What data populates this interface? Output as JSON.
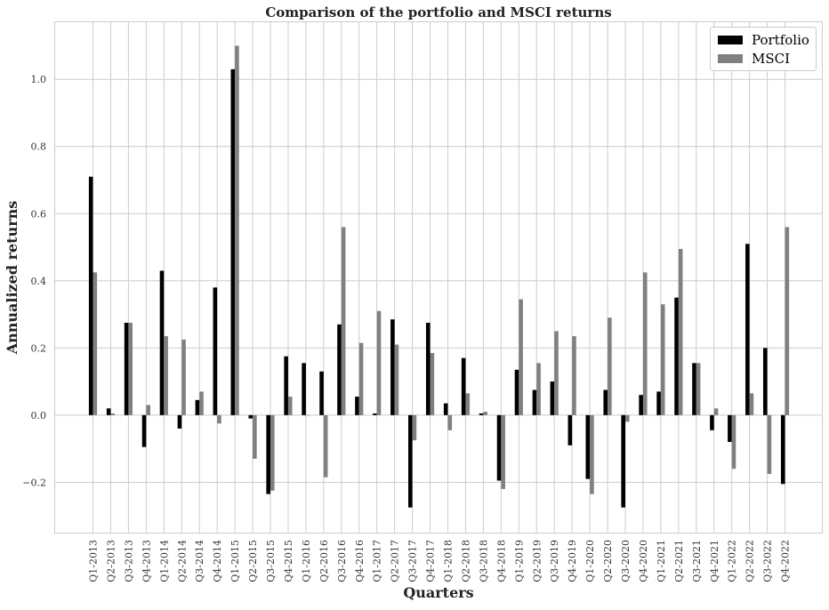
{
  "chart_data": {
    "type": "bar",
    "title": "Comparison of the portfolio and MSCI returns",
    "xlabel": "Quarters",
    "ylabel": "Annualized returns",
    "ylim": [
      -0.35,
      1.17
    ],
    "yticks": [
      -0.2,
      0.0,
      0.2,
      0.4,
      0.6,
      0.8,
      1.0
    ],
    "ytick_labels": [
      "−0.2",
      "0.0",
      "0.2",
      "0.4",
      "0.6",
      "0.8",
      "1.0"
    ],
    "grid": true,
    "legend_position": "top-right",
    "categories": [
      "Q1-2013",
      "Q2-2013",
      "Q3-2013",
      "Q4-2013",
      "Q1-2014",
      "Q2-2014",
      "Q3-2014",
      "Q4-2014",
      "Q1-2015",
      "Q2-2015",
      "Q3-2015",
      "Q4-2015",
      "Q1-2016",
      "Q2-2016",
      "Q3-2016",
      "Q4-2016",
      "Q1-2017",
      "Q2-2017",
      "Q3-2017",
      "Q4-2017",
      "Q1-2018",
      "Q2-2018",
      "Q3-2018",
      "Q4-2018",
      "Q1-2019",
      "Q2-2019",
      "Q3-2019",
      "Q4-2019",
      "Q1-2020",
      "Q2-2020",
      "Q3-2020",
      "Q4-2020",
      "Q1-2021",
      "Q2-2021",
      "Q3-2021",
      "Q4-2021",
      "Q1-2022",
      "Q2-2022",
      "Q3-2022",
      "Q4-2022"
    ],
    "series": [
      {
        "name": "Portfolio",
        "color": "#000000",
        "values": [
          0.71,
          0.02,
          0.275,
          -0.095,
          0.43,
          -0.04,
          0.045,
          0.38,
          1.03,
          -0.01,
          -0.235,
          0.175,
          0.155,
          0.13,
          0.27,
          0.055,
          0.005,
          0.285,
          -0.275,
          0.275,
          0.035,
          0.17,
          0.005,
          -0.195,
          0.135,
          0.075,
          0.1,
          -0.09,
          -0.19,
          0.075,
          -0.275,
          0.06,
          0.07,
          0.35,
          0.155,
          -0.045,
          -0.08,
          0.51,
          0.2,
          -0.205
        ]
      },
      {
        "name": "MSCI",
        "color": "#808080",
        "values": [
          0.425,
          0.005,
          0.275,
          0.03,
          0.235,
          0.225,
          0.07,
          -0.025,
          1.1,
          -0.13,
          -0.225,
          0.055,
          0.0,
          -0.185,
          0.56,
          0.215,
          0.31,
          0.21,
          -0.075,
          0.185,
          -0.045,
          0.065,
          0.01,
          -0.22,
          0.345,
          0.155,
          0.25,
          0.235,
          -0.235,
          0.29,
          -0.02,
          0.425,
          0.33,
          0.495,
          0.155,
          0.02,
          -0.16,
          0.065,
          -0.175,
          0.56
        ]
      }
    ]
  }
}
